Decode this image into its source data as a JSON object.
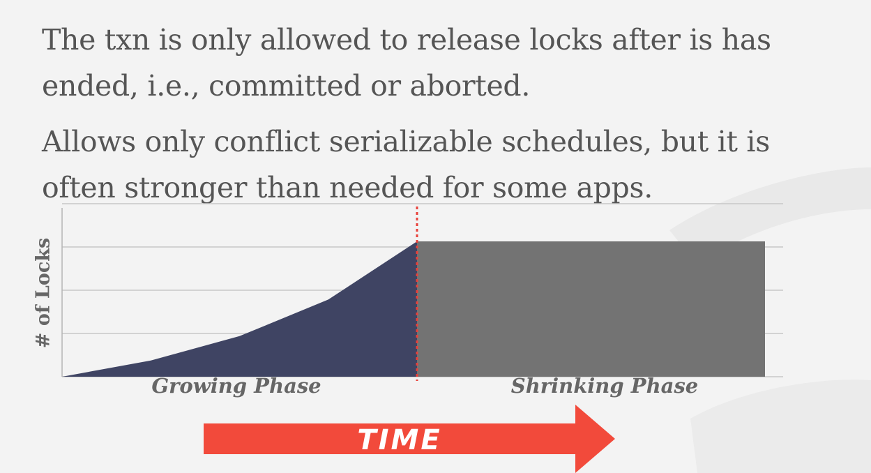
{
  "text": {
    "paragraph1": "The txn is only allowed to release locks after is has ended, i.e., committed or aborted.",
    "paragraph2": "Allows only conflict serializable schedules, but it is often stronger than needed for some apps."
  },
  "colors": {
    "growing_fill": "#3f4463",
    "shrinking_fill": "#737373",
    "divider": "#e8413a",
    "time_arrow": "#f24a3b",
    "grid": "#c8c8c8"
  },
  "chart_data": {
    "type": "area",
    "ylabel": "# of Locks",
    "xlabel": "",
    "y_ticks": 4,
    "phases": [
      {
        "name": "Growing Phase",
        "shape": "increasing",
        "points": [
          [
            0,
            0
          ],
          [
            1,
            0.12
          ],
          [
            2,
            0.3
          ],
          [
            3,
            0.57
          ],
          [
            4,
            1.0
          ]
        ]
      },
      {
        "name": "Shrinking Phase",
        "shape": "flat-then-drop",
        "level": 1.0
      }
    ],
    "divider": "dotted vertical line at end of growing phase",
    "arrow_label": "TIME",
    "grid": true
  }
}
